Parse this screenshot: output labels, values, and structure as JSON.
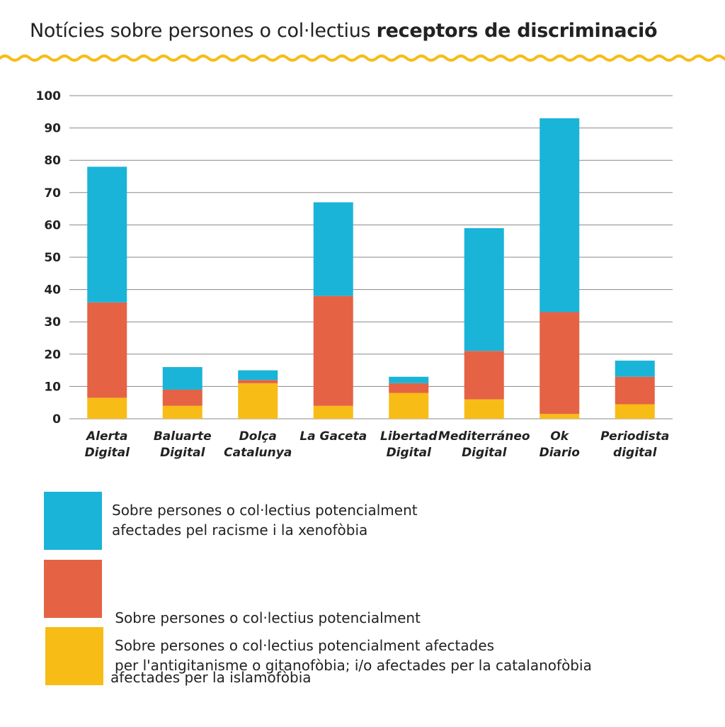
{
  "title": {
    "regular": "Notícies sobre persones o col·lectius",
    "bold": "receptors de discriminació"
  },
  "colors": {
    "racism": "#1ab4d8",
    "islamophobia": "#e56244",
    "antigypsyism": "#f8bc16",
    "wave": "#f8bc16",
    "grid": "#888888"
  },
  "chart_data": {
    "type": "bar",
    "stacked": true,
    "categories": [
      [
        "Alerta",
        "Digital"
      ],
      [
        "Baluarte",
        "Digital"
      ],
      [
        "Dolça",
        "Catalunya"
      ],
      [
        "La Gaceta"
      ],
      [
        "Libertad",
        "Digital"
      ],
      [
        "Mediterráneo",
        "Digital"
      ],
      [
        "Ok",
        "Diario"
      ],
      [
        "Periodista",
        "digital"
      ]
    ],
    "series": [
      {
        "name": "Sobre persones o col·lectius potencialment afectades per l'antigitanisme o gitanofòbia; i/o afectades per la catalanofòbia",
        "color": "#f8bc16",
        "values": [
          6.5,
          4,
          11,
          4,
          8,
          6,
          1.5,
          4.5
        ]
      },
      {
        "name": "Sobre persones o col·lectius potencialment afectades per la islamofòbia",
        "color": "#e56244",
        "values": [
          29.5,
          5,
          1,
          34,
          3,
          15,
          31.5,
          8.5
        ]
      },
      {
        "name": "Sobre persones o col·lectius potencialment afectades pel racisme i la xenofòbia",
        "color": "#1ab4d8",
        "values": [
          42,
          7,
          3,
          29,
          2,
          38,
          60,
          5
        ]
      }
    ],
    "ylim": [
      0,
      100
    ],
    "yticks": [
      0,
      10,
      20,
      30,
      40,
      50,
      60,
      70,
      80,
      90,
      100
    ],
    "grid": true,
    "legend_position": "bottom"
  },
  "legend": [
    {
      "lines": [
        "Sobre persones o col·lectius potencialment",
        "afectades pel racisme i la xenofòbia"
      ],
      "color": "#1ab4d8"
    },
    {
      "lines": [
        " Sobre persones o col·lectius potencialment",
        "afectades per la islamofòbia"
      ],
      "color": "#e56244"
    },
    {
      "lines": [
        "Sobre persones o col·lectius potencialment afectades",
        "per l'antigitanisme o gitanofòbia; i/o afectades per la catalanofòbia"
      ],
      "color": "#f8bc16"
    }
  ]
}
